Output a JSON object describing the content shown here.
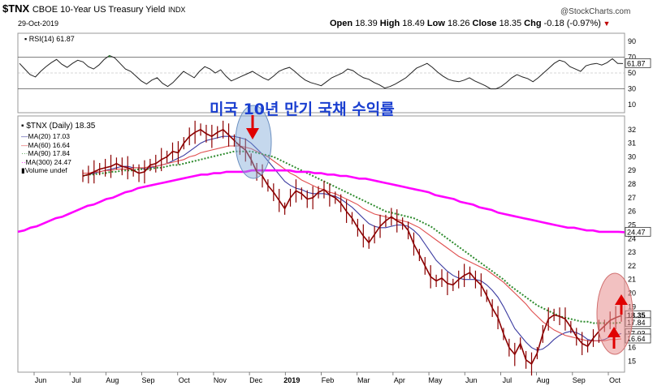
{
  "header": {
    "symbol": "$TNX",
    "name": "CBOE 10-Year US Treasury Yield",
    "exchange": "INDX",
    "date": "29-Oct-2019",
    "brand": "@StockCharts.com",
    "ohlc": {
      "open_label": "Open",
      "open": "18.39",
      "high_label": "High",
      "high": "18.49",
      "low_label": "Low",
      "low": "18.26",
      "close_label": "Close",
      "close": "18.35",
      "chg_label": "Chg",
      "chg": "-0.18 (-0.97%)"
    }
  },
  "annotation": {
    "korean_title": "미국 10년 만기 국채 수익률"
  },
  "colors": {
    "price": "#8b0000",
    "ma20": "#3a3aa0",
    "ma60": "#e05050",
    "ma90": "#2e8b2e",
    "ma300": "#ff00ff",
    "rsi": "#222222",
    "rsi_fill_high": "#2e7d32",
    "rsi_fill_low": "#6a1b4d",
    "circle": "#7fa8d8",
    "circle2": "#e88e8e",
    "arrow": "#e00000"
  },
  "chart_data": [
    {
      "type": "line",
      "title": "RSI(14) 61.87",
      "legend": [
        "RSI(14) 61.87"
      ],
      "yticks": [
        90,
        70,
        50,
        30,
        10
      ],
      "ylim": [
        0,
        100
      ],
      "overbought": 70,
      "oversold": 30,
      "last_value": 61.87,
      "last_label": "61.87",
      "values": [
        62,
        55,
        48,
        45,
        52,
        58,
        63,
        67,
        61,
        57,
        62,
        66,
        64,
        58,
        55,
        60,
        67,
        72,
        69,
        62,
        55,
        52,
        46,
        40,
        36,
        41,
        44,
        37,
        33,
        38,
        45,
        52,
        48,
        44,
        52,
        58,
        55,
        50,
        54,
        46,
        40,
        43,
        46,
        49,
        52,
        48,
        44,
        41,
        46,
        52,
        55,
        57,
        52,
        46,
        41,
        38,
        36,
        34,
        39,
        44,
        47,
        50,
        55,
        53,
        48,
        44,
        42,
        38,
        35,
        31,
        33,
        36,
        40,
        44,
        50,
        56,
        59,
        62,
        57,
        51,
        46,
        42,
        40,
        39,
        41,
        44,
        40,
        37,
        34,
        30,
        30,
        33,
        38,
        44,
        48,
        45,
        43,
        39,
        44,
        50,
        56,
        62,
        66,
        64,
        58,
        55,
        52,
        59,
        61,
        62,
        60,
        63,
        68,
        62,
        61.87
      ]
    },
    {
      "type": "line",
      "title": "$TNX (Daily) 18.35",
      "legend": [
        "MA(20) 17.03",
        "MA(60) 16.64",
        "MA(90) 17.84",
        "MA(300) 24.47",
        "Volume undef"
      ],
      "x_labels": [
        "Jun",
        "Jul",
        "Aug",
        "Sep",
        "Oct",
        "Nov",
        "Dec",
        "2019",
        "Feb",
        "Mar",
        "Apr",
        "May",
        "Jun",
        "Jul",
        "Aug",
        "Sep",
        "Oct"
      ],
      "yticks": [
        32,
        31,
        30,
        29,
        28,
        27,
        26,
        25,
        24,
        23,
        22,
        21,
        20,
        19,
        18,
        17,
        16,
        15
      ],
      "ylim": [
        14.2,
        33
      ],
      "last_labels": [
        {
          "value": 24.47,
          "text": "24.47"
        },
        {
          "value": 18.35,
          "text": "18.35"
        },
        {
          "value": 17.84,
          "text": "17.84"
        },
        {
          "value": 17.03,
          "text": "17.03"
        },
        {
          "value": 16.64,
          "text": "16.64"
        }
      ],
      "price": [
        28.6,
        28.7,
        28.9,
        29.1,
        29.2,
        29.3,
        29.5,
        29.3,
        29.2,
        29.0,
        28.8,
        28.9,
        29.4,
        29.5,
        29.8,
        30.0,
        30.4,
        30.3,
        31.0,
        31.5,
        31.8,
        32.0,
        31.7,
        31.5,
        31.8,
        32.0,
        31.6,
        31.2,
        30.8,
        30.5,
        29.8,
        28.9,
        28.6,
        27.9,
        27.4,
        26.8,
        26.2,
        27.0,
        27.5,
        27.3,
        26.9,
        27.0,
        27.4,
        27.6,
        27.2,
        27.0,
        26.6,
        26.0,
        25.5,
        24.8,
        24.2,
        23.7,
        24.3,
        24.9,
        25.3,
        25.6,
        25.3,
        25.1,
        24.6,
        23.6,
        22.8,
        22.0,
        21.2,
        20.9,
        21.1,
        20.7,
        20.6,
        21.0,
        21.3,
        21.5,
        21.0,
        20.6,
        19.8,
        18.9,
        18.2,
        17.0,
        16.0,
        15.5,
        16.3,
        15.1,
        14.8,
        15.6,
        17.0,
        18.1,
        18.4,
        18.3,
        18.1,
        17.5,
        16.8,
        16.3,
        16.1,
        16.7,
        17.2,
        17.6,
        18.0,
        18.2,
        18.35
      ],
      "series": [
        {
          "name": "MA(20) 17.03",
          "values": [
            28.6,
            28.7,
            28.8,
            28.9,
            29.0,
            29.1,
            29.2,
            29.3,
            29.3,
            29.2,
            29.2,
            29.1,
            29.2,
            29.3,
            29.4,
            29.5,
            29.7,
            29.9,
            30.1,
            30.4,
            30.7,
            31.0,
            31.2,
            31.3,
            31.4,
            31.5,
            31.5,
            31.5,
            31.4,
            31.3,
            31.0,
            30.6,
            30.2,
            29.7,
            29.2,
            28.7,
            28.2,
            27.9,
            27.7,
            27.6,
            27.4,
            27.3,
            27.3,
            27.3,
            27.2,
            27.1,
            26.9,
            26.6,
            26.3,
            25.9,
            25.5,
            25.1,
            24.9,
            24.8,
            24.8,
            24.9,
            25.0,
            25.0,
            24.9,
            24.6,
            24.2,
            23.6,
            23.0,
            22.4,
            22.0,
            21.6,
            21.3,
            21.1,
            21.0,
            21.0,
            21.0,
            20.9,
            20.6,
            20.2,
            19.7,
            19.0,
            18.2,
            17.4,
            16.9,
            16.4,
            16.0,
            15.8,
            15.9,
            16.2,
            16.6,
            16.9,
            17.1,
            17.2,
            17.1,
            16.9,
            16.6,
            16.5,
            16.5,
            16.6,
            16.8,
            16.9,
            17.03
          ]
        },
        {
          "name": "MA(60) 16.64",
          "values": [
            28.8,
            28.8,
            28.9,
            28.9,
            29.0,
            29.0,
            29.1,
            29.1,
            29.1,
            29.2,
            29.2,
            29.2,
            29.3,
            29.3,
            29.4,
            29.5,
            29.6,
            29.7,
            29.8,
            30.0,
            30.1,
            30.3,
            30.4,
            30.5,
            30.6,
            30.7,
            30.8,
            30.8,
            30.8,
            30.7,
            30.6,
            30.4,
            30.2,
            30.0,
            29.7,
            29.4,
            29.1,
            28.8,
            28.6,
            28.3,
            28.1,
            27.9,
            27.7,
            27.6,
            27.4,
            27.3,
            27.1,
            26.9,
            26.7,
            26.5,
            26.2,
            26.0,
            25.8,
            25.7,
            25.6,
            25.5,
            25.4,
            25.3,
            25.2,
            25.0,
            24.8,
            24.5,
            24.2,
            23.9,
            23.6,
            23.3,
            23.0,
            22.7,
            22.5,
            22.3,
            22.1,
            21.9,
            21.7,
            21.4,
            21.1,
            20.8,
            20.4,
            20.0,
            19.6,
            19.2,
            18.7,
            18.3,
            17.9,
            17.6,
            17.3,
            17.1,
            16.9,
            16.8,
            16.7,
            16.6,
            16.5,
            16.5,
            16.5,
            16.5,
            16.6,
            16.6,
            16.64
          ]
        },
        {
          "name": "MA(90) 17.84",
          "values": [
            28.6,
            28.7,
            28.7,
            28.8,
            28.8,
            28.9,
            28.9,
            29.0,
            29.0,
            29.0,
            29.1,
            29.1,
            29.1,
            29.2,
            29.2,
            29.3,
            29.4,
            29.4,
            29.5,
            29.6,
            29.7,
            29.8,
            29.9,
            30.0,
            30.1,
            30.2,
            30.3,
            30.4,
            30.4,
            30.4,
            30.4,
            30.3,
            30.2,
            30.1,
            30.0,
            29.8,
            29.6,
            29.4,
            29.2,
            29.0,
            28.8,
            28.6,
            28.4,
            28.2,
            28.0,
            27.8,
            27.6,
            27.4,
            27.2,
            27.0,
            26.8,
            26.6,
            26.4,
            26.2,
            26.0,
            25.9,
            25.8,
            25.7,
            25.6,
            25.5,
            25.3,
            25.1,
            24.9,
            24.6,
            24.3,
            24.0,
            23.7,
            23.4,
            23.1,
            22.8,
            22.5,
            22.2,
            21.9,
            21.6,
            21.3,
            21.0,
            20.6,
            20.3,
            20.0,
            19.7,
            19.4,
            19.1,
            18.9,
            18.7,
            18.5,
            18.3,
            18.2,
            18.1,
            18.0,
            17.9,
            17.9,
            17.8,
            17.8,
            17.8,
            17.8,
            17.8,
            17.84
          ]
        },
        {
          "name": "MA(300) 24.47",
          "values": [
            24.5,
            24.6,
            24.8,
            24.9,
            25.1,
            25.3,
            25.5,
            25.6,
            25.8,
            26.0,
            26.2,
            26.4,
            26.5,
            26.7,
            26.9,
            27.0,
            27.2,
            27.4,
            27.5,
            27.7,
            27.8,
            27.9,
            28.0,
            28.1,
            28.2,
            28.3,
            28.4,
            28.5,
            28.6,
            28.7,
            28.7,
            28.8,
            28.8,
            28.9,
            28.9,
            28.9,
            28.9,
            29.0,
            29.0,
            29.0,
            29.0,
            29.0,
            29.0,
            29.0,
            28.9,
            28.9,
            28.9,
            28.8,
            28.8,
            28.7,
            28.7,
            28.6,
            28.6,
            28.5,
            28.4,
            28.4,
            28.3,
            28.2,
            28.1,
            28.0,
            27.9,
            27.8,
            27.7,
            27.6,
            27.5,
            27.4,
            27.2,
            27.1,
            27.0,
            26.9,
            26.7,
            26.6,
            26.5,
            26.3,
            26.2,
            26.1,
            25.9,
            25.8,
            25.7,
            25.6,
            25.5,
            25.4,
            25.3,
            25.2,
            25.1,
            25.0,
            24.9,
            24.8,
            24.8,
            24.7,
            24.6,
            24.6,
            24.5,
            24.5,
            24.5,
            24.5,
            24.47
          ]
        }
      ]
    }
  ]
}
